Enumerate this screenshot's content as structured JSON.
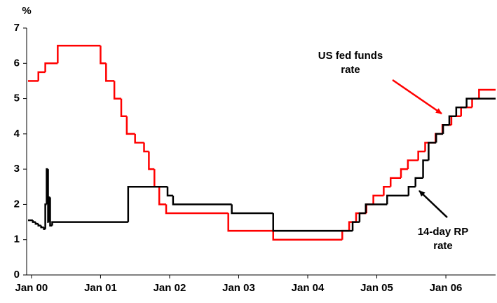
{
  "chart_data": {
    "type": "step",
    "y_label": "%",
    "xlim": [
      1999.93,
      2006.72
    ],
    "xticks": [
      {
        "value": 2000,
        "label": "Jan 00"
      },
      {
        "value": 2001,
        "label": "Jan 01"
      },
      {
        "value": 2002,
        "label": "Jan 02"
      },
      {
        "value": 2003,
        "label": "Jan 03"
      },
      {
        "value": 2004,
        "label": "Jan 04"
      },
      {
        "value": 2005,
        "label": "Jan 05"
      },
      {
        "value": 2006,
        "label": "Jan 06"
      }
    ],
    "ylim": [
      0,
      7
    ],
    "yticks": [
      0,
      1,
      2,
      3,
      4,
      5,
      6,
      7
    ],
    "series": [
      {
        "name": "US fed funds rate",
        "color": "#ff0000",
        "x": [
          1999.95,
          2000.1,
          2000.2,
          2000.38,
          2001.0,
          2001.08,
          2001.2,
          2001.3,
          2001.38,
          2001.5,
          2001.63,
          2001.7,
          2001.78,
          2001.85,
          2001.95,
          2002.85,
          2003.5,
          2004.5,
          2004.6,
          2004.7,
          2004.85,
          2004.95,
          2005.1,
          2005.2,
          2005.35,
          2005.45,
          2005.6,
          2005.7,
          2005.85,
          2005.95,
          2006.08,
          2006.22,
          2006.38,
          2006.48,
          2006.72
        ],
        "values": [
          5.5,
          5.75,
          6.0,
          6.5,
          6.0,
          5.5,
          5.0,
          4.5,
          4.0,
          3.75,
          3.5,
          3.0,
          2.5,
          2.0,
          1.75,
          1.25,
          1.0,
          1.25,
          1.5,
          1.75,
          2.0,
          2.25,
          2.5,
          2.75,
          3.0,
          3.25,
          3.5,
          3.75,
          4.0,
          4.25,
          4.5,
          4.75,
          5.0,
          5.25,
          5.25
        ]
      },
      {
        "name": "14-day RP rate",
        "color": "#000000",
        "x": [
          1999.95,
          2000.02,
          2000.06,
          2000.1,
          2000.14,
          2000.18,
          2000.2,
          2000.22,
          2000.24,
          2000.25,
          2000.27,
          2000.3,
          2001.4,
          2001.97,
          2002.05,
          2002.9,
          2003.5,
          2004.65,
          2004.75,
          2004.84,
          2005.15,
          2005.46,
          2005.56,
          2005.67,
          2005.75,
          2005.86,
          2005.96,
          2006.05,
          2006.15,
          2006.3,
          2006.45,
          2006.72
        ],
        "values": [
          1.55,
          1.5,
          1.45,
          1.4,
          1.35,
          1.3,
          2.0,
          3.0,
          1.5,
          2.2,
          1.4,
          1.5,
          2.5,
          2.25,
          2.0,
          1.75,
          1.25,
          1.5,
          1.75,
          2.0,
          2.25,
          2.5,
          2.75,
          3.25,
          3.75,
          4.0,
          4.25,
          4.5,
          4.75,
          5.0,
          5.0,
          5.0
        ]
      }
    ],
    "annotations": [
      {
        "lines": [
          "US fed funds",
          "rate"
        ]
      },
      {
        "lines": [
          "14-day RP",
          "rate"
        ]
      }
    ]
  }
}
